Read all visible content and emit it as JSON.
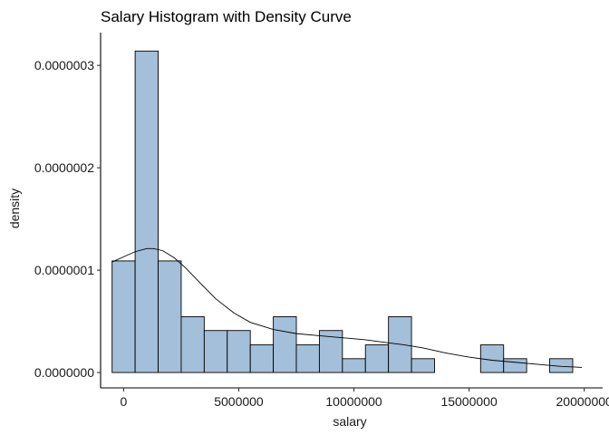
{
  "chart_data": {
    "type": "bar",
    "subtype": "histogram-with-density",
    "title": "Salary Histogram with Density Curve",
    "xlabel": "salary",
    "ylabel": "density",
    "xlim": [
      -1000000,
      20800000
    ],
    "ylim": [
      -1.5e-08,
      3.32e-07
    ],
    "x_ticks": [
      0,
      5000000,
      10000000,
      15000000,
      20000000
    ],
    "x_tick_labels": [
      "0",
      "5000000",
      "10000000",
      "15000000",
      "20000000"
    ],
    "y_ticks": [
      0,
      1e-07,
      2e-07,
      3e-07
    ],
    "y_tick_labels": [
      "0.0000000",
      "0.0000001",
      "0.0000002",
      "0.0000003"
    ],
    "grid": false,
    "bar_fill": "#a3bfd9",
    "bar_stroke": "#000000",
    "bins": {
      "starts": [
        -500000,
        500000,
        1500000,
        2500000,
        3500000,
        4500000,
        5500000,
        6500000,
        7500000,
        8500000,
        9500000,
        10500000,
        11500000,
        12500000,
        13500000,
        14500000,
        15500000,
        16500000,
        17500000,
        18500000
      ],
      "width": 1000000,
      "density": [
        1.09e-07,
        3.14e-07,
        1.09e-07,
        5.45e-08,
        4.1e-08,
        4.1e-08,
        2.7e-08,
        5.45e-08,
        2.7e-08,
        4.1e-08,
        1.35e-08,
        2.7e-08,
        5.45e-08,
        1.35e-08,
        0,
        0,
        2.7e-08,
        1.35e-08,
        0,
        1.35e-08
      ]
    },
    "density_curve": {
      "x": [
        -500000,
        0,
        500000,
        1000000,
        1300000,
        1700000,
        2200000,
        2700000,
        3300000,
        4000000,
        4800000,
        5500000,
        6500000,
        7500000,
        8500000,
        9500000,
        10500000,
        11500000,
        12200000,
        13000000,
        14000000,
        15000000,
        16000000,
        17000000,
        18000000,
        19000000,
        19900000
      ],
      "y": [
        1.08e-07,
        1.13e-07,
        1.18e-07,
        1.21e-07,
        1.21e-07,
        1.19e-07,
        1.12e-07,
        1.02e-07,
        8.8e-08,
        7.2e-08,
        5.8e-08,
        4.9e-08,
        4.2e-08,
        3.8e-08,
        3.6e-08,
        3.4e-08,
        3.2e-08,
        2.9e-08,
        2.7e-08,
        2.4e-08,
        1.9e-08,
        1.5e-08,
        1.2e-08,
        1e-08,
        8e-09,
        6e-09,
        5e-09
      ]
    }
  }
}
